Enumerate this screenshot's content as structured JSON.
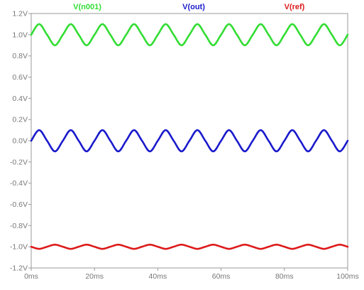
{
  "chart_data": {
    "type": "line",
    "title": "",
    "xlabel": "",
    "ylabel": "",
    "x_unit": "ms",
    "y_unit": "V",
    "xlim": [
      0,
      100
    ],
    "ylim": [
      -1.2,
      1.2
    ],
    "x_ticks": [
      0,
      20,
      40,
      60,
      80,
      100
    ],
    "x_tick_labels": [
      "0ms",
      "20ms",
      "40ms",
      "60ms",
      "80ms",
      "100ms"
    ],
    "y_ticks": [
      1.2,
      1.0,
      0.8,
      0.6,
      0.4,
      0.2,
      0.0,
      -0.2,
      -0.4,
      -0.6,
      -0.8,
      -1.0,
      -1.2
    ],
    "y_tick_labels": [
      "1.2V",
      "1.0V",
      "0.8V",
      "0.6V",
      "0.4V",
      "0.2V",
      "0.0V",
      "-0.2V",
      "-0.4V",
      "-0.6V",
      "-0.8V",
      "-1.0V",
      "-1.2V"
    ],
    "grid": false,
    "legend_placement": "top",
    "x": [
      0,
      2.5,
      5,
      7.5,
      10,
      12.5,
      15,
      17.5,
      20,
      22.5,
      25,
      27.5,
      30,
      32.5,
      35,
      37.5,
      40,
      42.5,
      45,
      47.5,
      50,
      52.5,
      55,
      57.5,
      60,
      62.5,
      65,
      67.5,
      70,
      72.5,
      75,
      77.5,
      80,
      82.5,
      85,
      87.5,
      90,
      92.5,
      95,
      97.5,
      100
    ],
    "series": [
      {
        "name": "V(n001)",
        "color": "#33dd33",
        "values": [
          1.0,
          1.1,
          1.0,
          0.9,
          1.0,
          1.1,
          1.0,
          0.9,
          1.0,
          1.1,
          1.0,
          0.9,
          1.0,
          1.1,
          1.0,
          0.9,
          1.0,
          1.1,
          1.0,
          0.9,
          1.0,
          1.1,
          1.0,
          0.9,
          1.0,
          1.1,
          1.0,
          0.9,
          1.0,
          1.1,
          1.0,
          0.9,
          1.0,
          1.1,
          1.0,
          0.9,
          1.0,
          1.1,
          1.0,
          0.9,
          1.0
        ]
      },
      {
        "name": "V(out)",
        "color": "#1a1acc",
        "values": [
          0.0,
          0.1,
          0.0,
          -0.1,
          0.0,
          0.1,
          0.0,
          -0.1,
          0.0,
          0.1,
          0.0,
          -0.1,
          0.0,
          0.1,
          0.0,
          -0.1,
          0.0,
          0.1,
          0.0,
          -0.1,
          0.0,
          0.1,
          0.0,
          -0.1,
          0.0,
          0.1,
          0.0,
          -0.1,
          0.0,
          0.1,
          0.0,
          -0.1,
          0.0,
          0.1,
          0.0,
          -0.1,
          0.0,
          0.1,
          0.0,
          -0.1,
          0.0
        ]
      },
      {
        "name": "V(ref)",
        "color": "#dd1a1a",
        "values": [
          -1.0,
          -1.02,
          -1.0,
          -0.98,
          -1.0,
          -1.02,
          -1.0,
          -0.98,
          -1.0,
          -1.02,
          -1.0,
          -0.98,
          -1.0,
          -1.02,
          -1.0,
          -0.98,
          -1.0,
          -1.02,
          -1.0,
          -0.98,
          -1.0,
          -1.02,
          -1.0,
          -0.98,
          -1.0,
          -1.02,
          -1.0,
          -0.98,
          -1.0,
          -1.02,
          -1.0,
          -0.98,
          -1.0,
          -1.02,
          -1.0,
          -0.98,
          -1.0,
          -1.02,
          -1.0,
          -0.98,
          -1.0
        ]
      }
    ]
  }
}
